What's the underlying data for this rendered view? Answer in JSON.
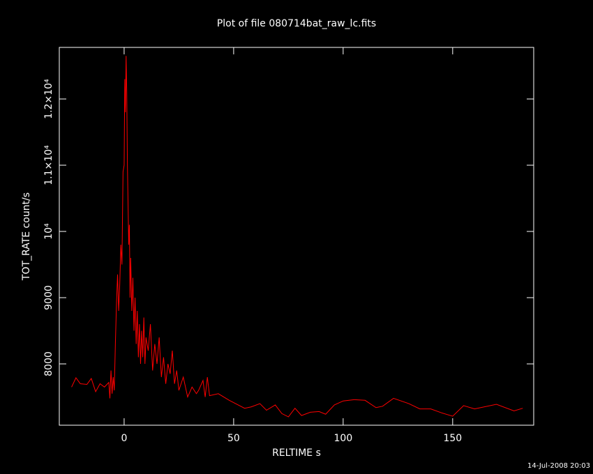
{
  "chart_data": {
    "type": "line",
    "title": "Plot of file 080714bat_raw_lc.fits",
    "xlabel": "RELTIME  s",
    "ylabel": "TOT_RATE  count/s",
    "footer": "14-Jul-2008 20:03",
    "xlim": [
      -29.6,
      187
    ],
    "ylim": [
      7074,
      12779
    ],
    "xticks": [
      0,
      50,
      100,
      150
    ],
    "yticks": [
      8000,
      9000,
      {
        "value": 10000,
        "label": "10⁴"
      },
      {
        "value": 11000,
        "label": "1.1×10⁴"
      },
      {
        "value": 12000,
        "label": "1.2×10⁴"
      }
    ],
    "background": "#000000",
    "axis_color": "#ffffff",
    "grid": false,
    "series": [
      {
        "color": "#ff0000",
        "x": [
          -24,
          -22,
          -20,
          -17,
          -15,
          -13,
          -11,
          -9,
          -7,
          -6.5,
          -6,
          -5.5,
          -5,
          -4.5,
          -4,
          -3.5,
          -3,
          -2.5,
          -2,
          -1.5,
          -1,
          -0.5,
          0,
          0.3,
          0.6,
          0.9,
          1.2,
          1.5,
          1.8,
          2.1,
          2.4,
          2.7,
          3,
          3.5,
          4,
          4.5,
          5,
          5.5,
          6,
          6.5,
          7,
          7.5,
          8,
          8.5,
          9,
          9.5,
          10,
          11,
          12,
          13,
          14,
          15,
          16,
          17,
          18,
          19,
          20,
          21,
          22,
          23,
          24,
          25,
          27,
          29,
          31,
          33,
          34,
          36,
          37,
          38,
          39,
          43,
          48,
          55,
          58,
          62,
          65,
          69,
          72,
          75,
          78,
          81,
          85,
          89,
          92,
          96,
          100,
          105,
          110,
          115,
          118,
          123,
          130,
          135,
          140,
          145,
          150,
          155,
          160,
          170,
          178,
          182
        ],
        "values": [
          7650,
          7790,
          7700,
          7690,
          7780,
          7580,
          7700,
          7650,
          7720,
          7480,
          7900,
          7550,
          7800,
          7600,
          8300,
          8900,
          9350,
          8800,
          9200,
          9800,
          9500,
          10900,
          11000,
          12300,
          11800,
          12650,
          12100,
          11000,
          10400,
          9800,
          10100,
          9000,
          9600,
          8800,
          9300,
          8500,
          9000,
          8300,
          8800,
          8100,
          8600,
          8000,
          8500,
          8100,
          8700,
          8000,
          8400,
          8200,
          8600,
          7900,
          8300,
          8000,
          8400,
          7800,
          8100,
          7700,
          8000,
          7850,
          8200,
          7700,
          7900,
          7600,
          7800,
          7500,
          7650,
          7550,
          7600,
          7750,
          7500,
          7800,
          7520,
          7550,
          7450,
          7330,
          7350,
          7400,
          7300,
          7380,
          7250,
          7200,
          7330,
          7220,
          7270,
          7280,
          7240,
          7380,
          7440,
          7460,
          7450,
          7340,
          7360,
          7480,
          7400,
          7320,
          7320,
          7260,
          7210,
          7370,
          7320,
          7390,
          7290,
          7330
        ]
      }
    ]
  }
}
